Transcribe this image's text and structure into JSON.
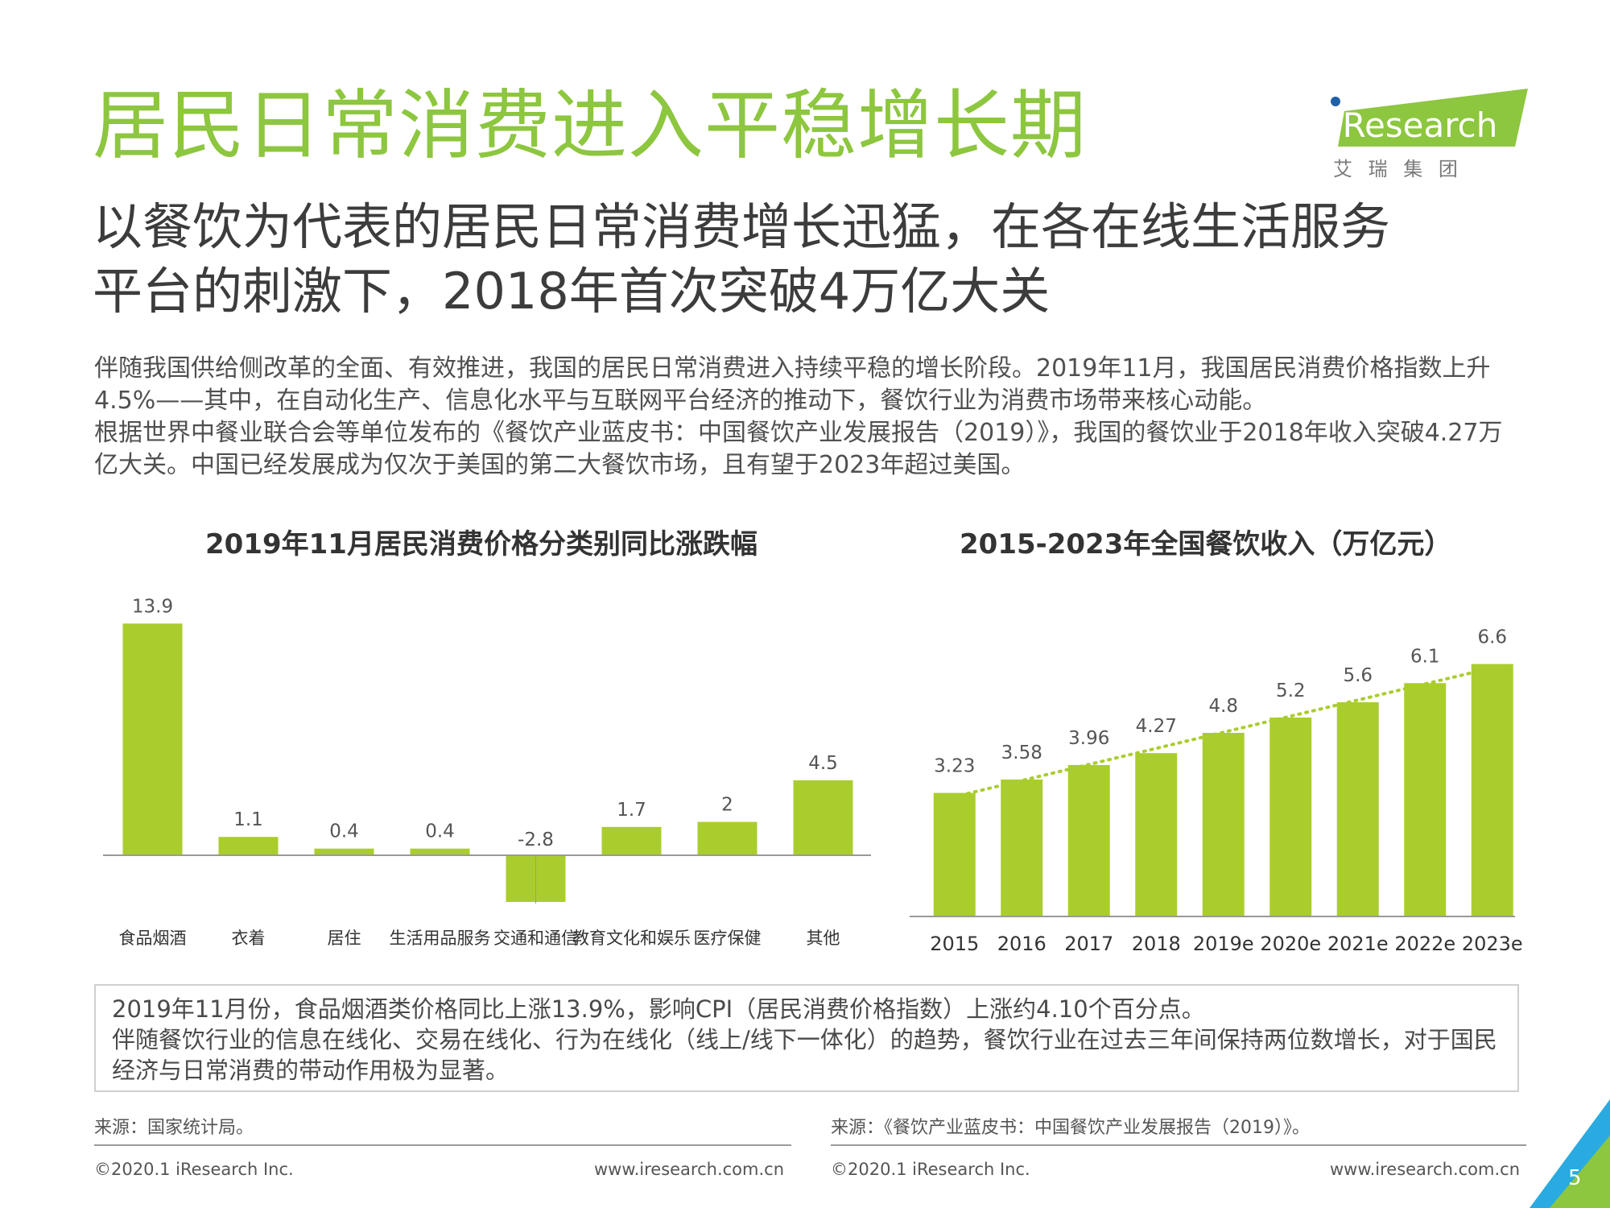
{
  "header": {
    "title": "居民日常消费进入平稳增长期",
    "subtitle_line1": "以餐饮为代表的居民日常消费增长迅猛，在各在线生活服务",
    "subtitle_line2": "平台的刺激下，2018年首次突破4万亿大关"
  },
  "logo": {
    "brand": "iResearch",
    "chinese": "艾 瑞 集 团"
  },
  "body": {
    "paragraph1": "伴随我国供给侧改革的全面、有效推进，我国的居民日常消费进入持续平稳的增长阶段。2019年11月，我国居民消费价格指数上升4.5%——其中，在自动化生产、信息化水平与互联网平台经济的推动下，餐饮行业为消费市场带来核心动能。",
    "paragraph2": "根据世界中餐业联合会等单位发布的《餐饮产业蓝皮书：中国餐饮产业发展报告（2019）》，我国的餐饮业于2018年收入突破4.27万亿大关。中国已经发展成为仅次于美国的第二大餐饮市场，且有望于2023年超过美国。"
  },
  "chart_data": [
    {
      "type": "bar",
      "title": "2019年11月居民消费价格分类别同比涨跌幅",
      "categories": [
        "食品烟酒",
        "衣着",
        "居住",
        "生活用品服务",
        "交通和通信",
        "教育文化和娱乐",
        "医疗保健",
        "其他"
      ],
      "values": [
        13.9,
        1.1,
        0.4,
        0.4,
        -2.8,
        1.7,
        2,
        4.5
      ],
      "value_labels": [
        "13.9",
        "1.1",
        "0.4",
        "0.4",
        "-2.8",
        "1.7",
        "2",
        "4.5"
      ],
      "xlabel": "",
      "ylabel": "",
      "ylim": [
        -3,
        14
      ],
      "grid": false
    },
    {
      "type": "bar",
      "title": "2015-2023年全国餐饮收入（万亿元）",
      "categories": [
        "2015",
        "2016",
        "2017",
        "2018",
        "2019e",
        "2020e",
        "2021e",
        "2022e",
        "2023e"
      ],
      "values": [
        3.23,
        3.58,
        3.96,
        4.27,
        4.8,
        5.2,
        5.6,
        6.1,
        6.6
      ],
      "value_labels": [
        "3.23",
        "3.58",
        "3.96",
        "4.27",
        "4.8",
        "5.2",
        "5.6",
        "6.1",
        "6.6"
      ],
      "trendline": "linear-dotted",
      "xlabel": "",
      "ylabel": "",
      "ylim": [
        0,
        7
      ],
      "grid": false
    }
  ],
  "summary": {
    "line1": "2019年11月份，食品烟酒类价格同比上涨13.9%，影响CPI（居民消费价格指数）上涨约4.10个百分点。",
    "line2": "伴随餐饮行业的信息在线化、交易在线化、行为在线化（线上/线下一体化）的趋势，餐饮行业在过去三年间保持两位数增长，对于国民经济与日常消费的带动作用极为显著。"
  },
  "sources": {
    "left": "来源：国家统计局。",
    "right": "来源：《餐饮产业蓝皮书：中国餐饮产业发展报告（2019）》。"
  },
  "footer": {
    "copyright_left": "©2020.1 iResearch Inc.",
    "url_left": "www.iresearch.com.cn",
    "copyright_right": "©2020.1 iResearch Inc.",
    "url_right": "www.iresearch.com.cn",
    "page_number": "5"
  },
  "colors": {
    "title_green": "#8dc63f",
    "bar_green": "#aacd2e",
    "text_gray": "#404040"
  }
}
